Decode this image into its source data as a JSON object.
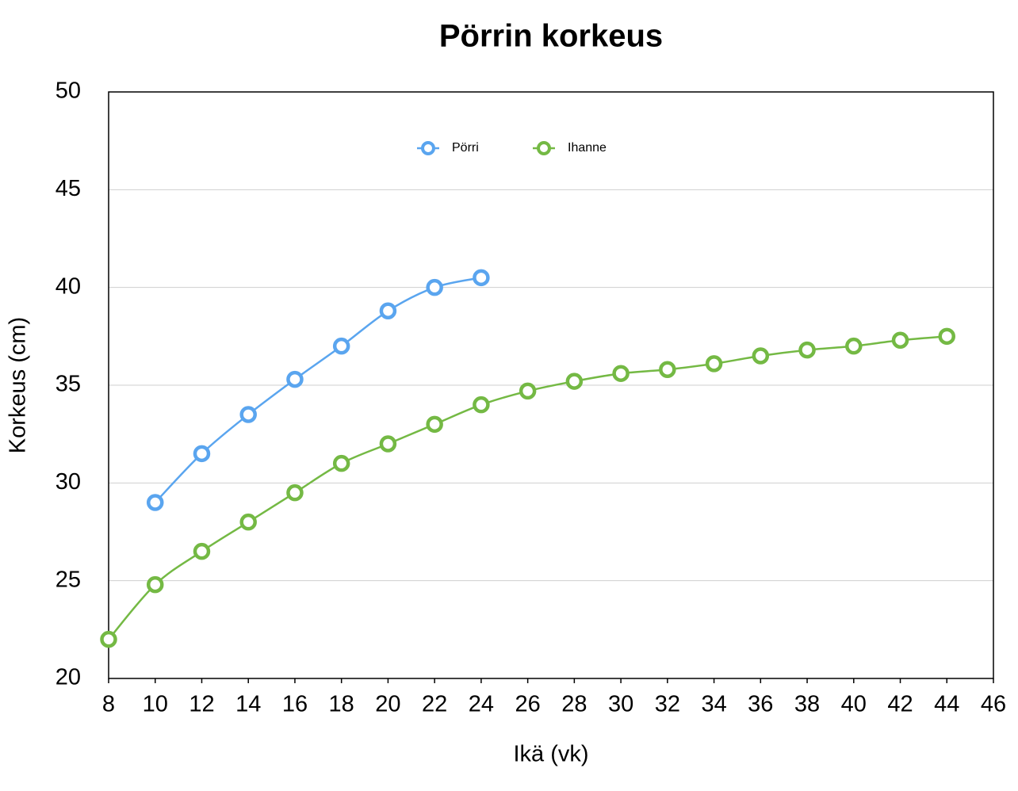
{
  "chart_data": {
    "type": "line",
    "title": "Pörrin korkeus",
    "x_label": "Ikä (vk)",
    "y_label": "Korkeus (cm)",
    "xlim": [
      8,
      46
    ],
    "xticks": [
      8,
      10,
      12,
      14,
      16,
      18,
      20,
      22,
      24,
      26,
      28,
      30,
      32,
      34,
      36,
      38,
      40,
      42,
      44,
      46
    ],
    "ylim": [
      20,
      50
    ],
    "yticks": [
      20,
      25,
      30,
      35,
      40,
      45,
      50
    ],
    "grid": true,
    "legend": "top",
    "series": [
      {
        "name": "Pörri",
        "color": "#5aa5ef",
        "x": [
          10,
          12,
          14,
          16,
          18,
          20,
          22,
          24
        ],
        "values": [
          29,
          31.5,
          33.5,
          35.3,
          37,
          38.8,
          40,
          40.5
        ]
      },
      {
        "name": "Ihanne",
        "color": "#74b944",
        "x": [
          8,
          10,
          12,
          14,
          16,
          18,
          20,
          22,
          24,
          26,
          28,
          30,
          32,
          34,
          36,
          38,
          40,
          42,
          44
        ],
        "values": [
          22,
          24.8,
          26.5,
          28,
          29.5,
          31,
          32,
          33,
          34,
          34.7,
          35.2,
          35.6,
          35.8,
          36.1,
          36.5,
          36.8,
          37,
          37.3,
          37.5
        ]
      }
    ]
  }
}
